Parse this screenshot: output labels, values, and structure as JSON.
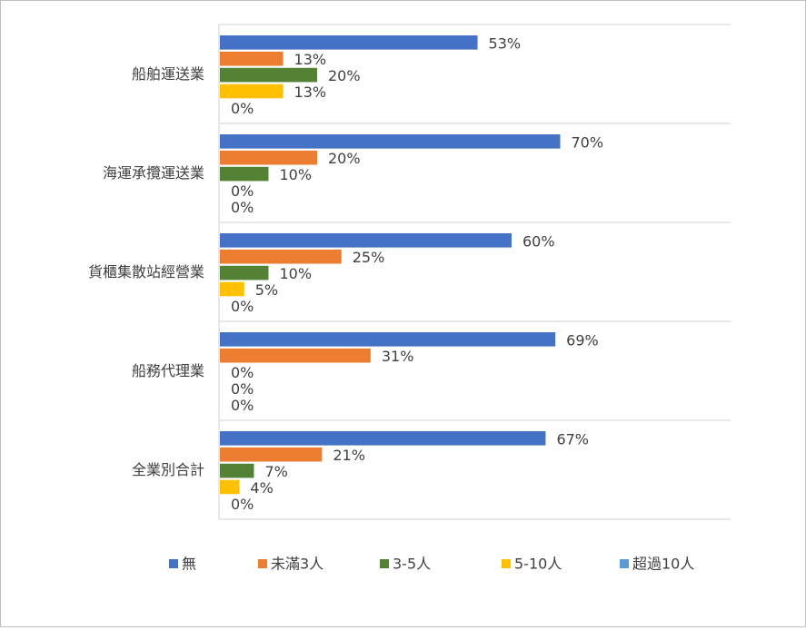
{
  "chart_data": {
    "type": "bar",
    "orientation": "horizontal",
    "title": "",
    "xlabel": "",
    "ylabel": "",
    "xlim": [
      0,
      1
    ],
    "grid": "horizontal separators between categories",
    "legend_position": "bottom",
    "categories": [
      "船舶運送業",
      "海運承攬運送業",
      "貨櫃集散站經營業",
      "船務代理業",
      "全業別合計"
    ],
    "series": [
      {
        "name": "無",
        "color": "#4472C4",
        "values": [
          0.53,
          0.7,
          0.6,
          0.69,
          0.67
        ],
        "labels": [
          "53%",
          "70%",
          "60%",
          "69%",
          "67%"
        ]
      },
      {
        "name": "未滿3人",
        "color": "#ED7D31",
        "values": [
          0.13,
          0.2,
          0.25,
          0.31,
          0.21
        ],
        "labels": [
          "13%",
          "20%",
          "25%",
          "31%",
          "21%"
        ]
      },
      {
        "name": "3-5人",
        "color": "#548235",
        "values": [
          0.2,
          0.1,
          0.1,
          0.0,
          0.07
        ],
        "labels": [
          "20%",
          "10%",
          "10%",
          "0%",
          "7%"
        ]
      },
      {
        "name": "5-10人",
        "color": "#FFC000",
        "values": [
          0.13,
          0.0,
          0.05,
          0.0,
          0.04
        ],
        "labels": [
          "13%",
          "0%",
          "5%",
          "0%",
          "4%"
        ]
      },
      {
        "name": "超過10人",
        "color": "#5B9BD5",
        "values": [
          0.0,
          0.0,
          0.0,
          0.0,
          0.0
        ],
        "labels": [
          "0%",
          "0%",
          "0%",
          "0%",
          "0%"
        ]
      }
    ]
  }
}
